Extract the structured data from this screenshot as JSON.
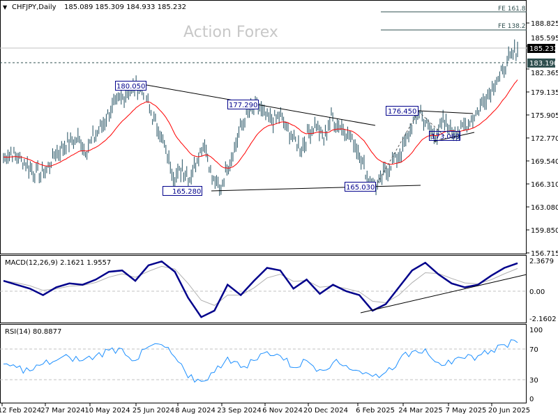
{
  "header": {
    "symbol_label": "CHFJPY,Daily",
    "ohlc": "185.089 185.309 184.933 185.232"
  },
  "watermark": "Action Forex",
  "colors": {
    "bars": "#1f4e5f",
    "ma": "#ff0000",
    "macd": "#00008b",
    "signal": "#b0b0b0",
    "rsi": "#1e90ff",
    "label_border": "#00008b",
    "price_tag_bg": "#000000",
    "level_tag_bg": "#2f4f4f"
  },
  "chart_data": [
    {
      "type": "bar",
      "panel": "price",
      "title": "CHFJPY,Daily",
      "y_ticks": [
        "188.825",
        "185.595",
        "182.365",
        "179.135",
        "175.905",
        "172.770",
        "169.540",
        "166.310",
        "163.080",
        "159.850",
        "156.715"
      ],
      "ylim": [
        156.715,
        188.825
      ],
      "x_ticks": [
        "12 Feb 2024",
        "27 Mar 2024",
        "10 May 2024",
        "25 Jun 2024",
        "8 Aug 2024",
        "23 Sep 2024",
        "6 Nov 2024",
        "20 Dec 2024",
        "6 Feb 2025",
        "24 Mar 2025",
        "7 May 2025",
        "20 Jun 2025"
      ],
      "weekly_closes": [
        170.0,
        170.5,
        169.8,
        169.0,
        168.0,
        167.5,
        168.5,
        170.5,
        171.5,
        172.0,
        172.5,
        171.0,
        172.5,
        174.0,
        176.0,
        177.5,
        178.5,
        179.5,
        180.0,
        179.0,
        175.5,
        173.5,
        170.0,
        167.0,
        168.5,
        167.0,
        170.0,
        172.0,
        167.0,
        165.5,
        168.5,
        171.0,
        174.5,
        176.5,
        177.3,
        176.0,
        175.0,
        176.0,
        174.0,
        172.5,
        171.0,
        173.5,
        174.5,
        172.5,
        175.5,
        174.5,
        173.5,
        172.0,
        170.0,
        166.5,
        166.0,
        167.5,
        169.0,
        170.0,
        172.0,
        175.0,
        176.4,
        174.0,
        173.0,
        175.0,
        174.0,
        173.5,
        174.5,
        175.5,
        177.0,
        179.0,
        180.5,
        182.0,
        184.0,
        185.2
      ],
      "current_price": "185.232",
      "level_price": "183.190",
      "annotations": [
        "180.050",
        "177.290",
        "165.280",
        "165.030",
        "176.450",
        "173.060"
      ],
      "fib_levels": [
        "FE 161.8",
        "FE 138.2"
      ]
    },
    {
      "type": "line",
      "panel": "macd",
      "title": "MACD(12,26,9) 2.1621 1.9557",
      "y_ticks": [
        "2.3679",
        "0.00",
        "-2.1602"
      ],
      "ylim": [
        -2.1602,
        2.3679
      ],
      "values": [
        0.8,
        0.5,
        0.2,
        -0.3,
        0.3,
        0.6,
        0.5,
        0.9,
        1.5,
        1.6,
        0.8,
        2.0,
        2.3,
        1.5,
        -0.5,
        -2.0,
        -1.5,
        0.5,
        -0.3,
        0.8,
        1.8,
        1.6,
        0.2,
        0.9,
        -0.2,
        0.5,
        0.0,
        -0.3,
        -1.5,
        -1.0,
        0.3,
        1.6,
        2.2,
        1.3,
        0.6,
        0.3,
        0.5,
        1.2,
        1.8,
        2.16
      ]
    },
    {
      "type": "line",
      "panel": "rsi",
      "title": "RSI(14) 80.8877",
      "y_ticks": [
        "100",
        "70",
        "30",
        "0"
      ],
      "ylim": [
        0,
        100
      ],
      "values": [
        50,
        45,
        40,
        50,
        55,
        60,
        55,
        62,
        70,
        72,
        55,
        75,
        78,
        60,
        30,
        25,
        38,
        60,
        45,
        55,
        68,
        62,
        45,
        55,
        42,
        52,
        48,
        40,
        32,
        38,
        55,
        68,
        72,
        52,
        50,
        58,
        62,
        70,
        78,
        81
      ]
    }
  ]
}
